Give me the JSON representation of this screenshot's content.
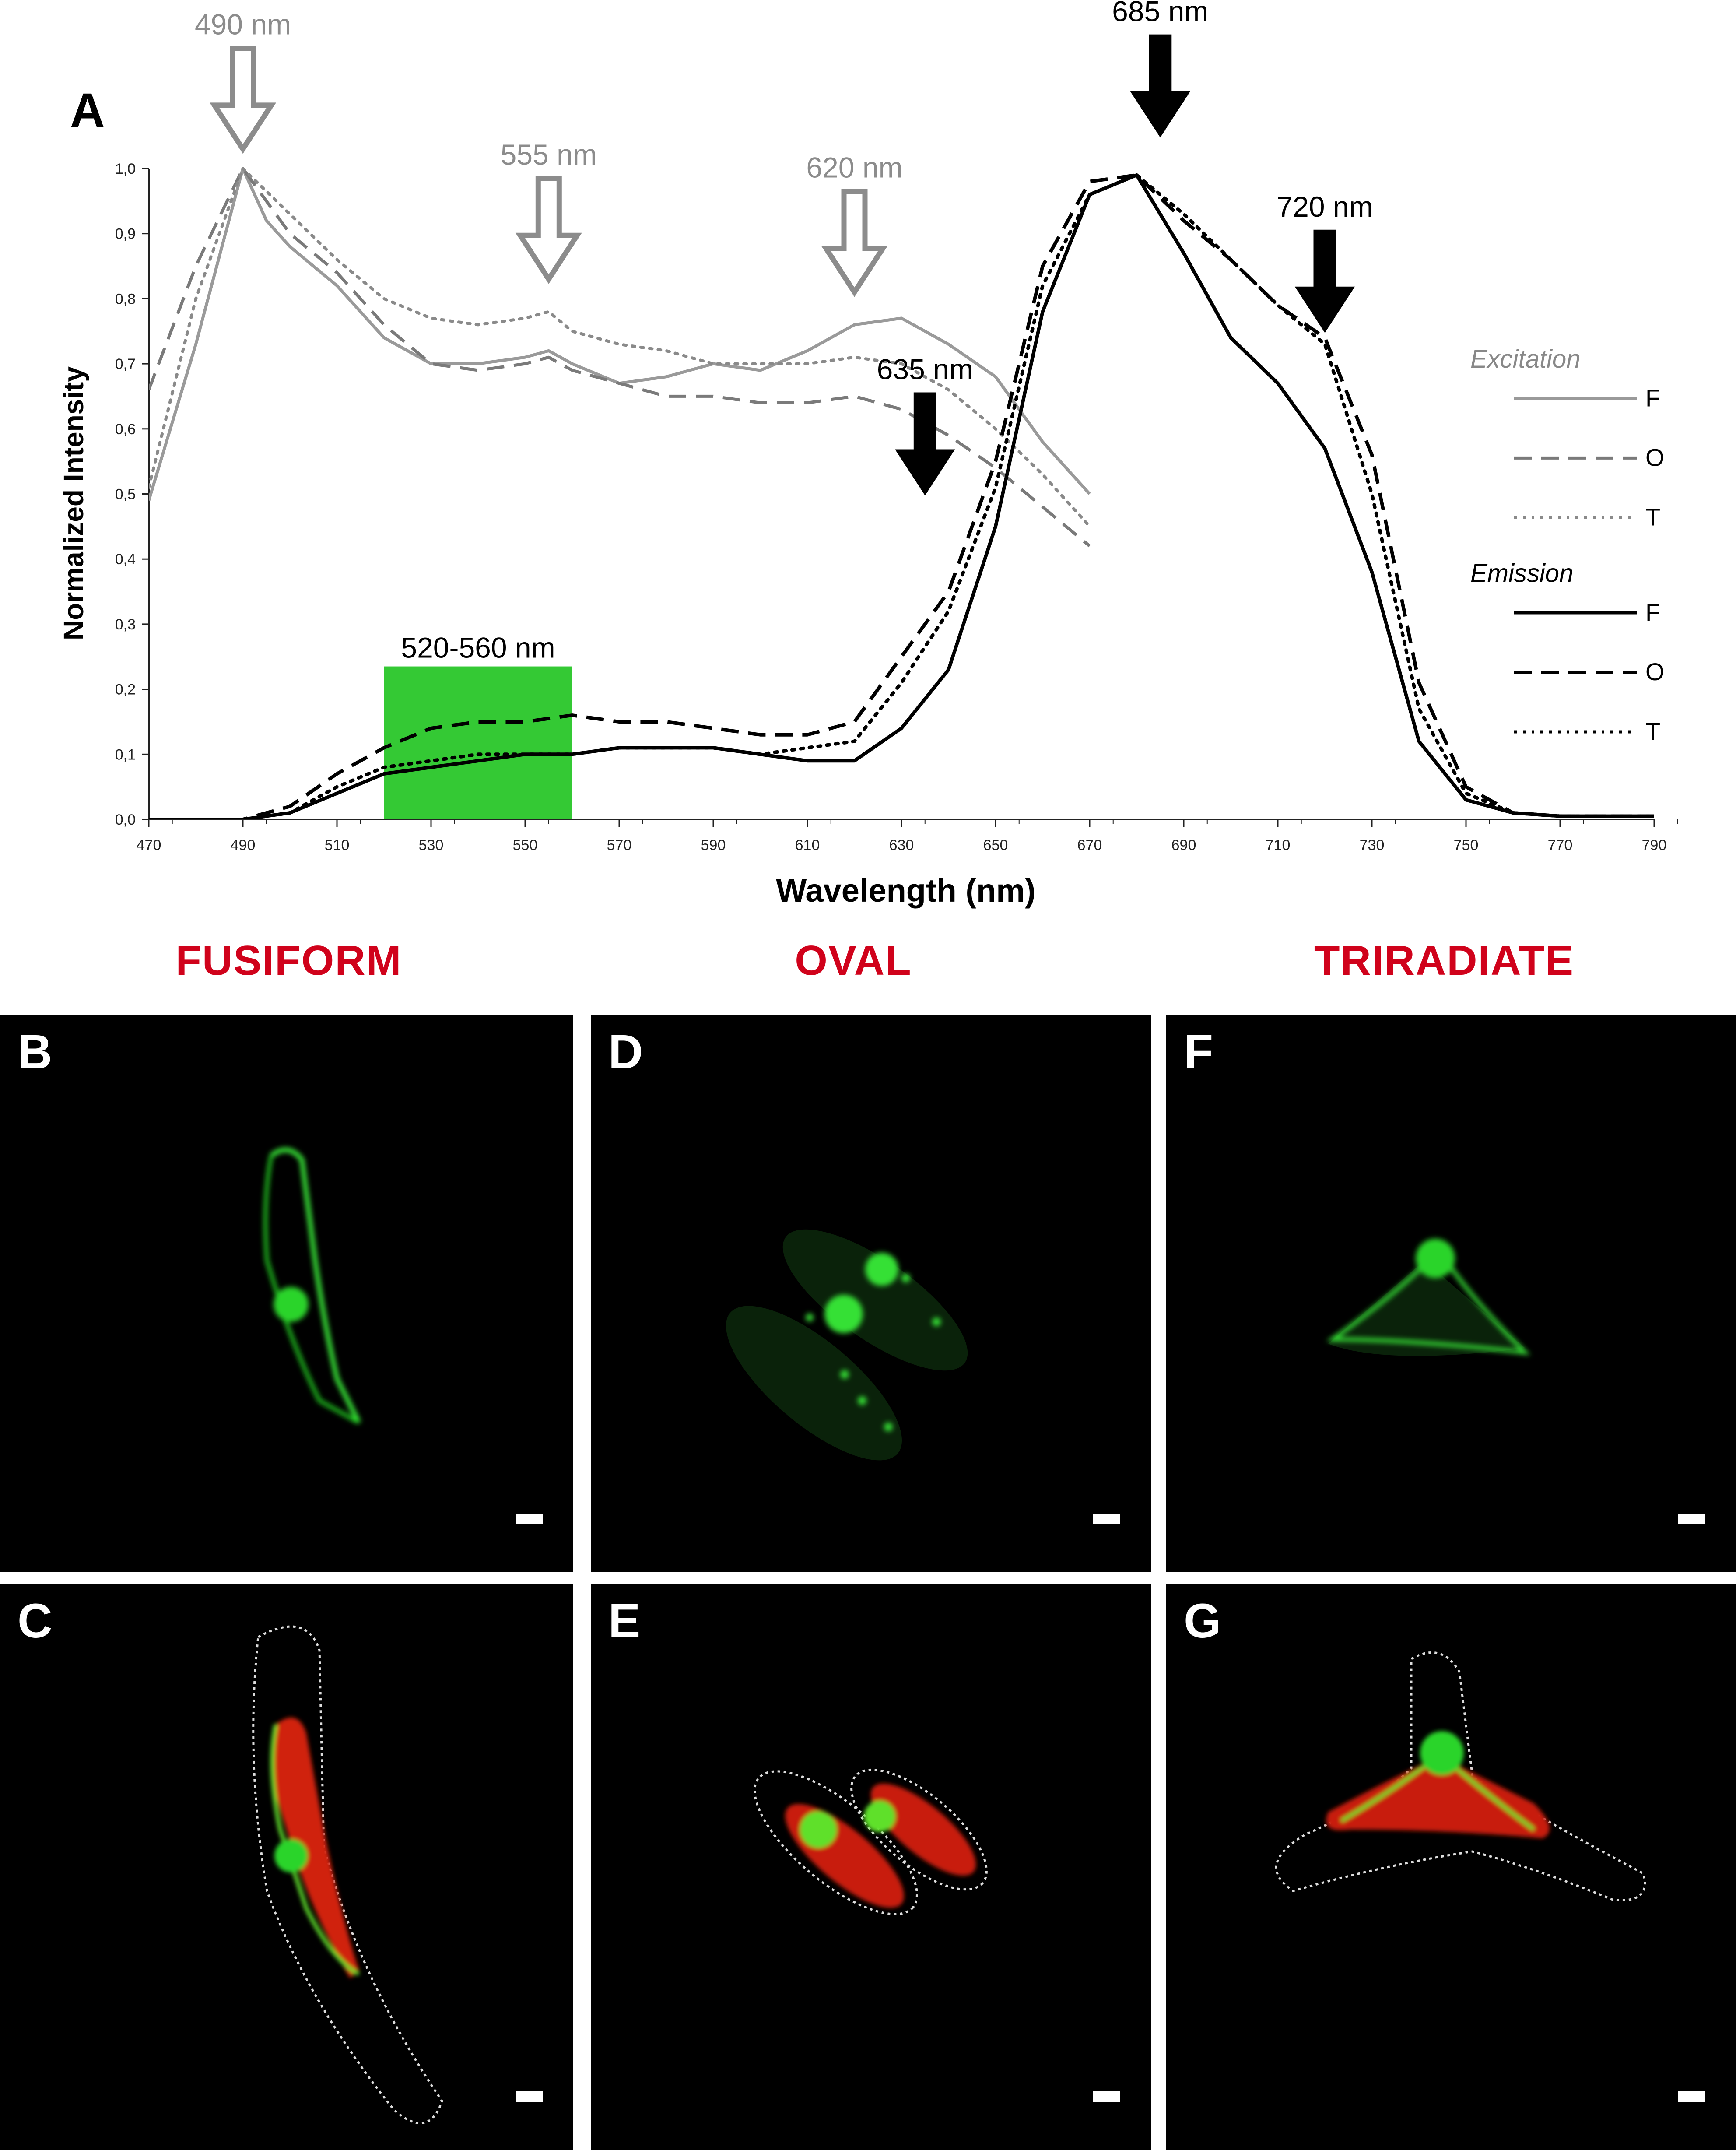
{
  "chart_data": {
    "type": "line",
    "panel_label": "A",
    "xlabel": "Wavelength (nm)",
    "ylabel": "Normalized Intensity",
    "xlim": [
      470,
      790
    ],
    "ylim": [
      0,
      1
    ],
    "xticks": [
      "470",
      "490",
      "510",
      "530",
      "550",
      "570",
      "590",
      "610",
      "630",
      "650",
      "670",
      "690",
      "710",
      "730",
      "750",
      "770",
      "790"
    ],
    "yticks": [
      "0,0",
      "0,1",
      "0,2",
      "0,3",
      "0,4",
      "0,5",
      "0,6",
      "0,7",
      "0,8",
      "0,9",
      "1,0"
    ],
    "series": [
      {
        "group": "Excitation",
        "name": "F",
        "color": "#9a9a9a",
        "dash": "solid",
        "x": [
          470,
          480,
          490,
          495,
          500,
          510,
          520,
          530,
          540,
          550,
          555,
          560,
          570,
          580,
          590,
          600,
          610,
          620,
          630,
          640,
          650,
          660,
          670
        ],
        "y": [
          0.49,
          0.73,
          1.0,
          0.92,
          0.88,
          0.82,
          0.74,
          0.7,
          0.7,
          0.71,
          0.72,
          0.7,
          0.67,
          0.68,
          0.7,
          0.69,
          0.72,
          0.76,
          0.77,
          0.73,
          0.68,
          0.58,
          0.5
        ]
      },
      {
        "group": "Excitation",
        "name": "O",
        "color": "#7a7a7a",
        "dash": "dashed",
        "x": [
          470,
          480,
          490,
          500,
          510,
          520,
          530,
          540,
          550,
          555,
          560,
          570,
          580,
          590,
          600,
          610,
          620,
          630,
          640,
          650,
          660,
          670
        ],
        "y": [
          0.66,
          0.85,
          1.0,
          0.9,
          0.84,
          0.76,
          0.7,
          0.69,
          0.7,
          0.71,
          0.69,
          0.67,
          0.65,
          0.65,
          0.64,
          0.64,
          0.65,
          0.63,
          0.59,
          0.54,
          0.48,
          0.42
        ]
      },
      {
        "group": "Excitation",
        "name": "T",
        "color": "#8a8a8a",
        "dash": "dotted",
        "x": [
          470,
          480,
          490,
          500,
          510,
          520,
          530,
          540,
          550,
          555,
          560,
          570,
          580,
          590,
          600,
          610,
          620,
          630,
          640,
          650,
          660,
          670
        ],
        "y": [
          0.51,
          0.8,
          1.0,
          0.93,
          0.86,
          0.8,
          0.77,
          0.76,
          0.77,
          0.78,
          0.75,
          0.73,
          0.72,
          0.7,
          0.7,
          0.7,
          0.71,
          0.7,
          0.66,
          0.6,
          0.53,
          0.45
        ]
      },
      {
        "group": "Emission",
        "name": "F",
        "color": "#000000",
        "dash": "solid",
        "x": [
          470,
          490,
          500,
          510,
          520,
          530,
          540,
          550,
          560,
          570,
          580,
          590,
          600,
          610,
          620,
          630,
          640,
          650,
          660,
          670,
          680,
          690,
          700,
          710,
          720,
          730,
          740,
          750,
          760,
          770,
          790
        ],
        "y": [
          0,
          0,
          0.01,
          0.04,
          0.07,
          0.08,
          0.09,
          0.1,
          0.1,
          0.11,
          0.11,
          0.11,
          0.1,
          0.09,
          0.09,
          0.14,
          0.23,
          0.45,
          0.78,
          0.96,
          0.99,
          0.87,
          0.74,
          0.67,
          0.57,
          0.38,
          0.12,
          0.03,
          0.01,
          0.005,
          0.005
        ]
      },
      {
        "group": "Emission",
        "name": "O",
        "color": "#000000",
        "dash": "dashed",
        "x": [
          470,
          490,
          500,
          510,
          520,
          530,
          540,
          550,
          560,
          570,
          580,
          590,
          600,
          610,
          620,
          630,
          640,
          650,
          660,
          670,
          680,
          690,
          700,
          710,
          720,
          730,
          740,
          750,
          760,
          770,
          790
        ],
        "y": [
          0,
          0,
          0.02,
          0.07,
          0.11,
          0.14,
          0.15,
          0.15,
          0.16,
          0.15,
          0.15,
          0.14,
          0.13,
          0.13,
          0.15,
          0.25,
          0.35,
          0.55,
          0.85,
          0.98,
          0.99,
          0.92,
          0.86,
          0.79,
          0.74,
          0.56,
          0.21,
          0.05,
          0.01,
          0.005,
          0.005
        ]
      },
      {
        "group": "Emission",
        "name": "T",
        "color": "#000000",
        "dash": "dotted",
        "x": [
          470,
          490,
          500,
          510,
          520,
          530,
          540,
          550,
          560,
          570,
          580,
          590,
          600,
          610,
          620,
          630,
          640,
          650,
          660,
          670,
          680,
          690,
          700,
          710,
          720,
          730,
          740,
          750,
          760,
          770,
          790
        ],
        "y": [
          0,
          0,
          0.01,
          0.05,
          0.08,
          0.09,
          0.1,
          0.1,
          0.1,
          0.11,
          0.11,
          0.11,
          0.1,
          0.11,
          0.12,
          0.21,
          0.32,
          0.51,
          0.82,
          0.96,
          0.99,
          0.93,
          0.86,
          0.79,
          0.73,
          0.5,
          0.17,
          0.04,
          0.01,
          0.005,
          0.005
        ]
      }
    ],
    "highlight_band": {
      "from": 520,
      "to": 560,
      "label": "520-560 nm",
      "color": "#1ec31e"
    },
    "arrows": [
      {
        "label": "490 nm",
        "x": 490,
        "style": "hollow",
        "color": "#8c8c8c"
      },
      {
        "label": "555 nm",
        "x": 555,
        "style": "hollow",
        "color": "#8c8c8c"
      },
      {
        "label": "620 nm",
        "x": 620,
        "style": "hollow",
        "color": "#8c8c8c"
      },
      {
        "label": "635 nm",
        "x": 635,
        "style": "solid",
        "color": "#000000"
      },
      {
        "label": "685 nm",
        "x": 685,
        "style": "solid",
        "color": "#000000"
      },
      {
        "label": "720 nm",
        "x": 720,
        "style": "solid",
        "color": "#000000"
      }
    ],
    "legend": {
      "placement": "right",
      "groups": [
        {
          "title": "Excitation",
          "entries": [
            "F",
            "O",
            "T"
          ]
        },
        {
          "title": "Emission",
          "entries": [
            "F",
            "O",
            "T"
          ]
        }
      ]
    }
  },
  "morphotypes": {
    "fusiform": "FUSIFORM",
    "oval": "OVAL",
    "triradiate": "TRIRADIATE",
    "color": "#d0021b"
  },
  "micrographs": {
    "B": "B",
    "C": "C",
    "D": "D",
    "E": "E",
    "F": "F",
    "G": "G"
  }
}
